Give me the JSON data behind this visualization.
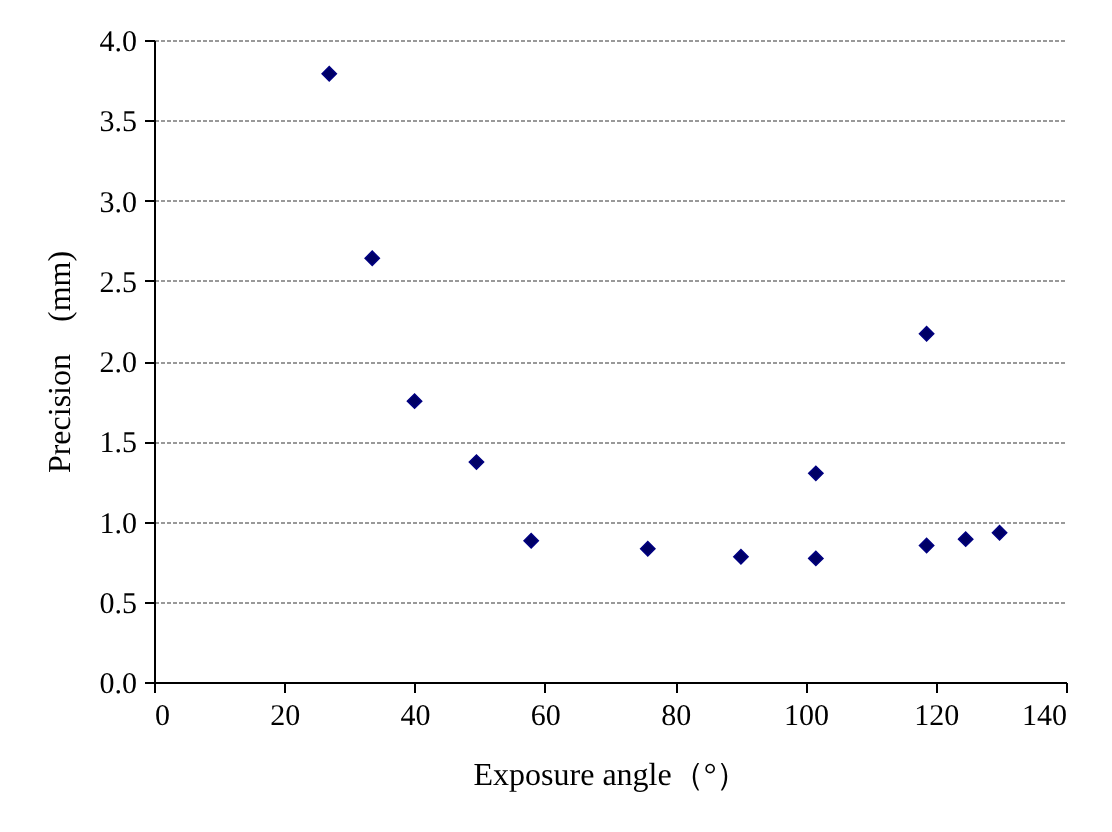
{
  "chart_data": {
    "type": "scatter",
    "xlabel": "Exposure angle（°）",
    "ylabel": "Precision　(mm)",
    "x": [
      26.9,
      33.5,
      40.0,
      49.5,
      57.9,
      75.8,
      90.1,
      101.6,
      101.6,
      118.6,
      118.6,
      124.6,
      129.8
    ],
    "series": [
      {
        "color": "#000066",
        "values": [
          3.79,
          2.64,
          1.75,
          1.37,
          0.88,
          0.83,
          0.78,
          1.3,
          0.77,
          2.17,
          0.85,
          0.89,
          0.93
        ]
      }
    ],
    "xlim": [
      0,
      140
    ],
    "xticks": [
      0,
      20,
      40,
      60,
      80,
      100,
      120,
      140
    ],
    "ylim": [
      0,
      4
    ],
    "yticks": [
      {
        "value": 0,
        "label": "0.0"
      },
      0.5,
      {
        "value": 1,
        "label": "1.0"
      },
      1.5,
      {
        "value": 2,
        "label": "2.0"
      },
      2.5,
      {
        "value": 3,
        "label": "3.0"
      },
      3.5,
      {
        "value": 4,
        "label": "4.0"
      }
    ],
    "grid": "y",
    "marker": "diamond"
  }
}
